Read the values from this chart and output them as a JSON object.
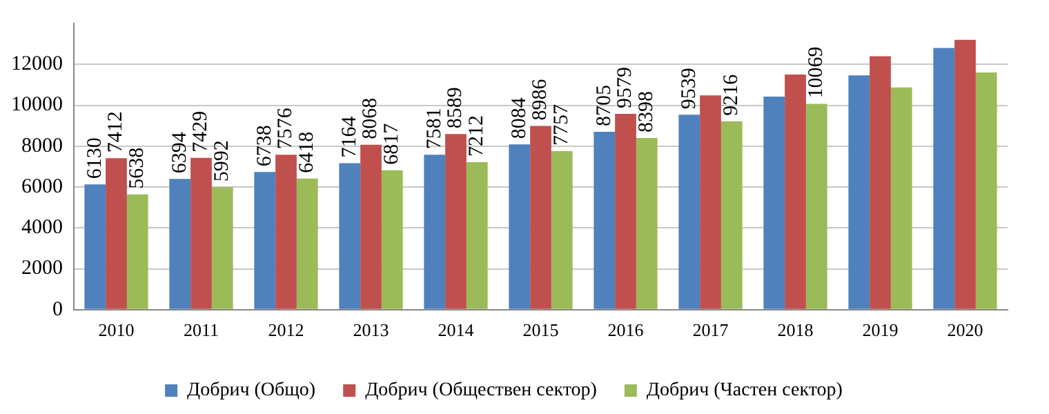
{
  "chart_data": {
    "type": "bar",
    "categories": [
      "2010",
      "2011",
      "2012",
      "2013",
      "2014",
      "2015",
      "2016",
      "2017",
      "2018",
      "2019",
      "2020"
    ],
    "series": [
      {
        "name": "Добрич (Общо)",
        "color": "#4f81bd",
        "values": [
          6130,
          6394,
          6738,
          7164,
          7581,
          8084,
          8705,
          9539,
          10420,
          11460,
          12800
        ],
        "value_labels": [
          "6130",
          "6394",
          "6738",
          "7164",
          "7581",
          "8084",
          "8705",
          "9539",
          null,
          null,
          null
        ]
      },
      {
        "name": "Добрич (Обществен сектор)",
        "color": "#c0504d",
        "values": [
          7412,
          7429,
          7576,
          8068,
          8589,
          8986,
          9579,
          10480,
          11500,
          12400,
          13200
        ],
        "value_labels": [
          "7412",
          "7429",
          "7576",
          "8068",
          "8589",
          "8986",
          "9579",
          null,
          null,
          null,
          null
        ]
      },
      {
        "name": "Добрич (Частен сектор)",
        "color": "#9bbb59",
        "values": [
          5638,
          5992,
          6418,
          6817,
          7212,
          7757,
          8398,
          9216,
          10069,
          10870,
          11600
        ],
        "value_labels": [
          "5638",
          "5992",
          "6418",
          "6817",
          "7212",
          "7757",
          "8398",
          "9216",
          "10069",
          null,
          null
        ]
      }
    ],
    "ylim": [
      0,
      14000
    ],
    "yticks": [
      0,
      2000,
      4000,
      6000,
      8000,
      10000,
      12000
    ],
    "grid": "y",
    "legend": "bottom"
  }
}
